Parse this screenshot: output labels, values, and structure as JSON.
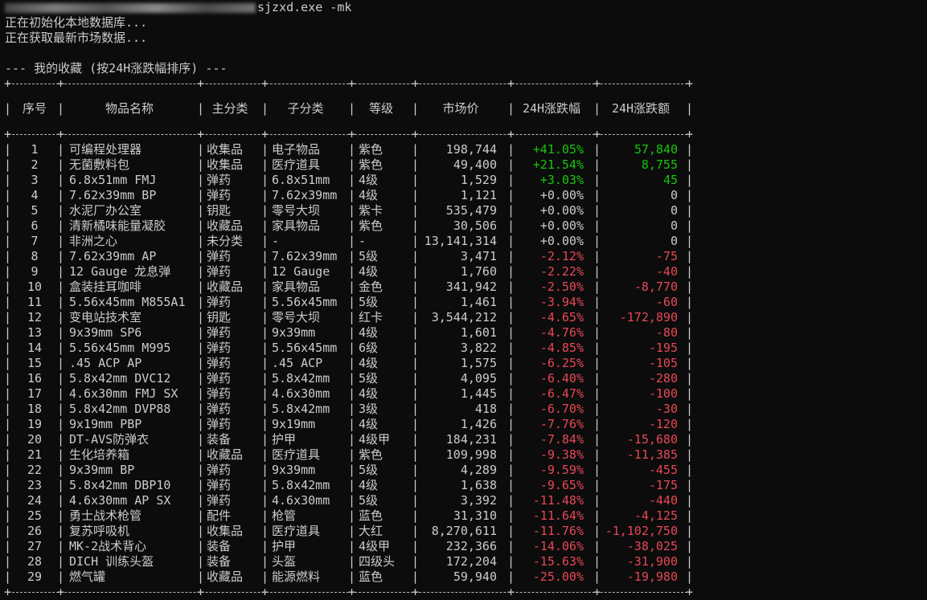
{
  "terminal": {
    "command_suffix": "sjzxd.exe -mk",
    "messages": [
      "正在初始化本地数据库...",
      "正在获取最新市场数据..."
    ],
    "section_title": "--- 我的收藏 (按24H涨跌幅排序) ---"
  },
  "table": {
    "headers": [
      "序号",
      "物品名称",
      "主分类",
      "子分类",
      "等级",
      "市场价",
      "24H涨跌幅",
      "24H涨跌额"
    ],
    "rows": [
      {
        "no": "1",
        "name": "可编程处理器",
        "cat": "收集品",
        "sub": "电子物品",
        "grade": "紫色",
        "price": "198,744",
        "pct": "+41.05%",
        "amt": "57,840",
        "trend": "pos"
      },
      {
        "no": "2",
        "name": "无菌敷料包",
        "cat": "收集品",
        "sub": "医疗道具",
        "grade": "紫色",
        "price": "49,400",
        "pct": "+21.54%",
        "amt": "8,755",
        "trend": "pos"
      },
      {
        "no": "3",
        "name": "6.8x51mm FMJ",
        "cat": "弹药",
        "sub": "6.8x51mm",
        "grade": "4级",
        "price": "1,529",
        "pct": "+3.03%",
        "amt": "45",
        "trend": "pos"
      },
      {
        "no": "4",
        "name": "7.62x39mm BP",
        "cat": "弹药",
        "sub": "7.62x39mm",
        "grade": "4级",
        "price": "1,121",
        "pct": "+0.00%",
        "amt": "0",
        "trend": "neu"
      },
      {
        "no": "5",
        "name": "水泥厂办公室",
        "cat": "钥匙",
        "sub": "零号大坝",
        "grade": "紫卡",
        "price": "535,479",
        "pct": "+0.00%",
        "amt": "0",
        "trend": "neu"
      },
      {
        "no": "6",
        "name": "清新橘味能量凝胶",
        "cat": "收藏品",
        "sub": "家具物品",
        "grade": "紫色",
        "price": "30,506",
        "pct": "+0.00%",
        "amt": "0",
        "trend": "neu"
      },
      {
        "no": "7",
        "name": "非洲之心",
        "cat": "未分类",
        "sub": "-",
        "grade": "-",
        "price": "13,141,314",
        "pct": "+0.00%",
        "amt": "0",
        "trend": "neu"
      },
      {
        "no": "8",
        "name": "7.62x39mm AP",
        "cat": "弹药",
        "sub": "7.62x39mm",
        "grade": "5级",
        "price": "3,471",
        "pct": "-2.12%",
        "amt": "-75",
        "trend": "neg"
      },
      {
        "no": "9",
        "name": "12 Gauge 龙息弹",
        "cat": "弹药",
        "sub": "12 Gauge",
        "grade": "4级",
        "price": "1,760",
        "pct": "-2.22%",
        "amt": "-40",
        "trend": "neg"
      },
      {
        "no": "10",
        "name": "盒装挂耳咖啡",
        "cat": "收藏品",
        "sub": "家具物品",
        "grade": "金色",
        "price": "341,942",
        "pct": "-2.50%",
        "amt": "-8,770",
        "trend": "neg"
      },
      {
        "no": "11",
        "name": "5.56x45mm M855A1",
        "cat": "弹药",
        "sub": "5.56x45mm",
        "grade": "5级",
        "price": "1,461",
        "pct": "-3.94%",
        "amt": "-60",
        "trend": "neg"
      },
      {
        "no": "12",
        "name": "变电站技术室",
        "cat": "钥匙",
        "sub": "零号大坝",
        "grade": "红卡",
        "price": "3,544,212",
        "pct": "-4.65%",
        "amt": "-172,890",
        "trend": "neg"
      },
      {
        "no": "13",
        "name": "9x39mm SP6",
        "cat": "弹药",
        "sub": "9x39mm",
        "grade": "4级",
        "price": "1,601",
        "pct": "-4.76%",
        "amt": "-80",
        "trend": "neg"
      },
      {
        "no": "14",
        "name": "5.56x45mm M995",
        "cat": "弹药",
        "sub": "5.56x45mm",
        "grade": "6级",
        "price": "3,822",
        "pct": "-4.85%",
        "amt": "-195",
        "trend": "neg"
      },
      {
        "no": "15",
        "name": ".45 ACP AP",
        "cat": "弹药",
        "sub": ".45 ACP",
        "grade": "4级",
        "price": "1,575",
        "pct": "-6.25%",
        "amt": "-105",
        "trend": "neg"
      },
      {
        "no": "16",
        "name": "5.8x42mm DVC12",
        "cat": "弹药",
        "sub": "5.8x42mm",
        "grade": "5级",
        "price": "4,095",
        "pct": "-6.40%",
        "amt": "-280",
        "trend": "neg"
      },
      {
        "no": "17",
        "name": "4.6x30mm FMJ SX",
        "cat": "弹药",
        "sub": "4.6x30mm",
        "grade": "4级",
        "price": "1,445",
        "pct": "-6.47%",
        "amt": "-100",
        "trend": "neg"
      },
      {
        "no": "18",
        "name": "5.8x42mm DVP88",
        "cat": "弹药",
        "sub": "5.8x42mm",
        "grade": "3级",
        "price": "418",
        "pct": "-6.70%",
        "amt": "-30",
        "trend": "neg"
      },
      {
        "no": "19",
        "name": "9x19mm PBP",
        "cat": "弹药",
        "sub": "9x19mm",
        "grade": "4级",
        "price": "1,426",
        "pct": "-7.76%",
        "amt": "-120",
        "trend": "neg"
      },
      {
        "no": "20",
        "name": "DT-AVS防弹衣",
        "cat": "装备",
        "sub": "护甲",
        "grade": "4级甲",
        "price": "184,231",
        "pct": "-7.84%",
        "amt": "-15,680",
        "trend": "neg"
      },
      {
        "no": "21",
        "name": "生化培养箱",
        "cat": "收藏品",
        "sub": "医疗道具",
        "grade": "紫色",
        "price": "109,998",
        "pct": "-9.38%",
        "amt": "-11,385",
        "trend": "neg"
      },
      {
        "no": "22",
        "name": "9x39mm BP",
        "cat": "弹药",
        "sub": "9x39mm",
        "grade": "5级",
        "price": "4,289",
        "pct": "-9.59%",
        "amt": "-455",
        "trend": "neg"
      },
      {
        "no": "23",
        "name": "5.8x42mm DBP10",
        "cat": "弹药",
        "sub": "5.8x42mm",
        "grade": "4级",
        "price": "1,638",
        "pct": "-9.65%",
        "amt": "-175",
        "trend": "neg"
      },
      {
        "no": "24",
        "name": "4.6x30mm AP SX",
        "cat": "弹药",
        "sub": "4.6x30mm",
        "grade": "5级",
        "price": "3,392",
        "pct": "-11.48%",
        "amt": "-440",
        "trend": "neg"
      },
      {
        "no": "25",
        "name": "勇士战术枪管",
        "cat": "配件",
        "sub": "枪管",
        "grade": "蓝色",
        "price": "31,310",
        "pct": "-11.64%",
        "amt": "-4,125",
        "trend": "neg"
      },
      {
        "no": "26",
        "name": "复苏呼吸机",
        "cat": "收集品",
        "sub": "医疗道具",
        "grade": "大红",
        "price": "8,270,611",
        "pct": "-11.76%",
        "amt": "-1,102,750",
        "trend": "neg"
      },
      {
        "no": "27",
        "name": "MK-2战术背心",
        "cat": "装备",
        "sub": "护甲",
        "grade": "4级甲",
        "price": "232,366",
        "pct": "-14.06%",
        "amt": "-38,025",
        "trend": "neg"
      },
      {
        "no": "28",
        "name": "DICH 训练头盔",
        "cat": "装备",
        "sub": "头盔",
        "grade": "四级头",
        "price": "172,204",
        "pct": "-15.63%",
        "amt": "-31,900",
        "trend": "neg"
      },
      {
        "no": "29",
        "name": "燃气罐",
        "cat": "收藏品",
        "sub": "能源燃料",
        "grade": "蓝色",
        "price": "59,940",
        "pct": "-25.00%",
        "amt": "-19,980",
        "trend": "neg"
      }
    ]
  },
  "colors": {
    "background": "#0c0c0c",
    "text": "#cccccc",
    "positive": "#16c60c",
    "negative": "#e74856"
  }
}
